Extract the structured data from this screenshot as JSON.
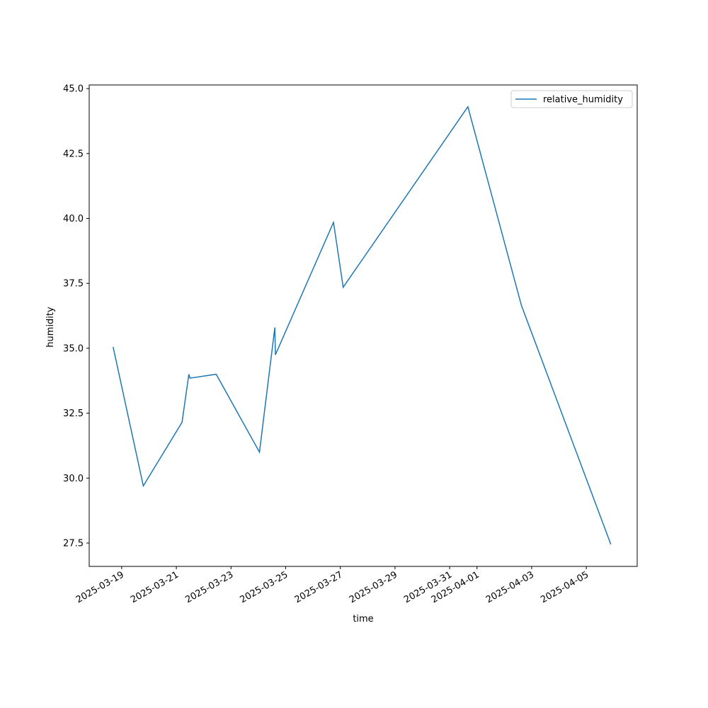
{
  "chart_data": {
    "type": "line",
    "x_label": "time",
    "y_label": "humidity",
    "x": [
      "2025-03-18T16:30",
      "2025-03-19T19:00",
      "2025-03-21T05:00",
      "2025-03-21T11:00",
      "2025-03-21T12:00",
      "2025-03-22T11:00",
      "2025-03-24T01:00",
      "2025-03-24T14:30",
      "2025-03-24T15:00",
      "2025-03-26T18:00",
      "2025-03-27T02:30",
      "2025-03-31T16:00",
      "2025-04-02T15:00",
      "2025-04-05T21:30"
    ],
    "series": [
      {
        "name": "relative_humidity",
        "color": "#1f77b4",
        "values": [
          35.05,
          29.7,
          32.15,
          34.0,
          33.85,
          34.0,
          31.0,
          35.8,
          34.75,
          39.85,
          37.35,
          44.3,
          36.65,
          27.45
        ]
      }
    ],
    "xlim": [
      "2025-03-17T19:30",
      "2025-04-06T20:40"
    ],
    "xticks": [
      "2025-03-19",
      "2025-03-21",
      "2025-03-23",
      "2025-03-25",
      "2025-03-27",
      "2025-03-29",
      "2025-03-31",
      "2025-04-01",
      "2025-04-03",
      "2025-04-05"
    ],
    "ylim": [
      26.6,
      45.14
    ],
    "yticks": [
      {
        "value": 27.5,
        "label": "27.5"
      },
      {
        "value": 30,
        "label": "30.0"
      },
      {
        "value": 32.5,
        "label": "32.5"
      },
      {
        "value": 35,
        "label": "35.0"
      },
      {
        "value": 37.5,
        "label": "37.5"
      },
      {
        "value": 40,
        "label": "40.0"
      },
      {
        "value": 42.5,
        "label": "42.5"
      },
      {
        "value": 45,
        "label": "45.0"
      }
    ],
    "grid": false,
    "legend": "upper right"
  }
}
